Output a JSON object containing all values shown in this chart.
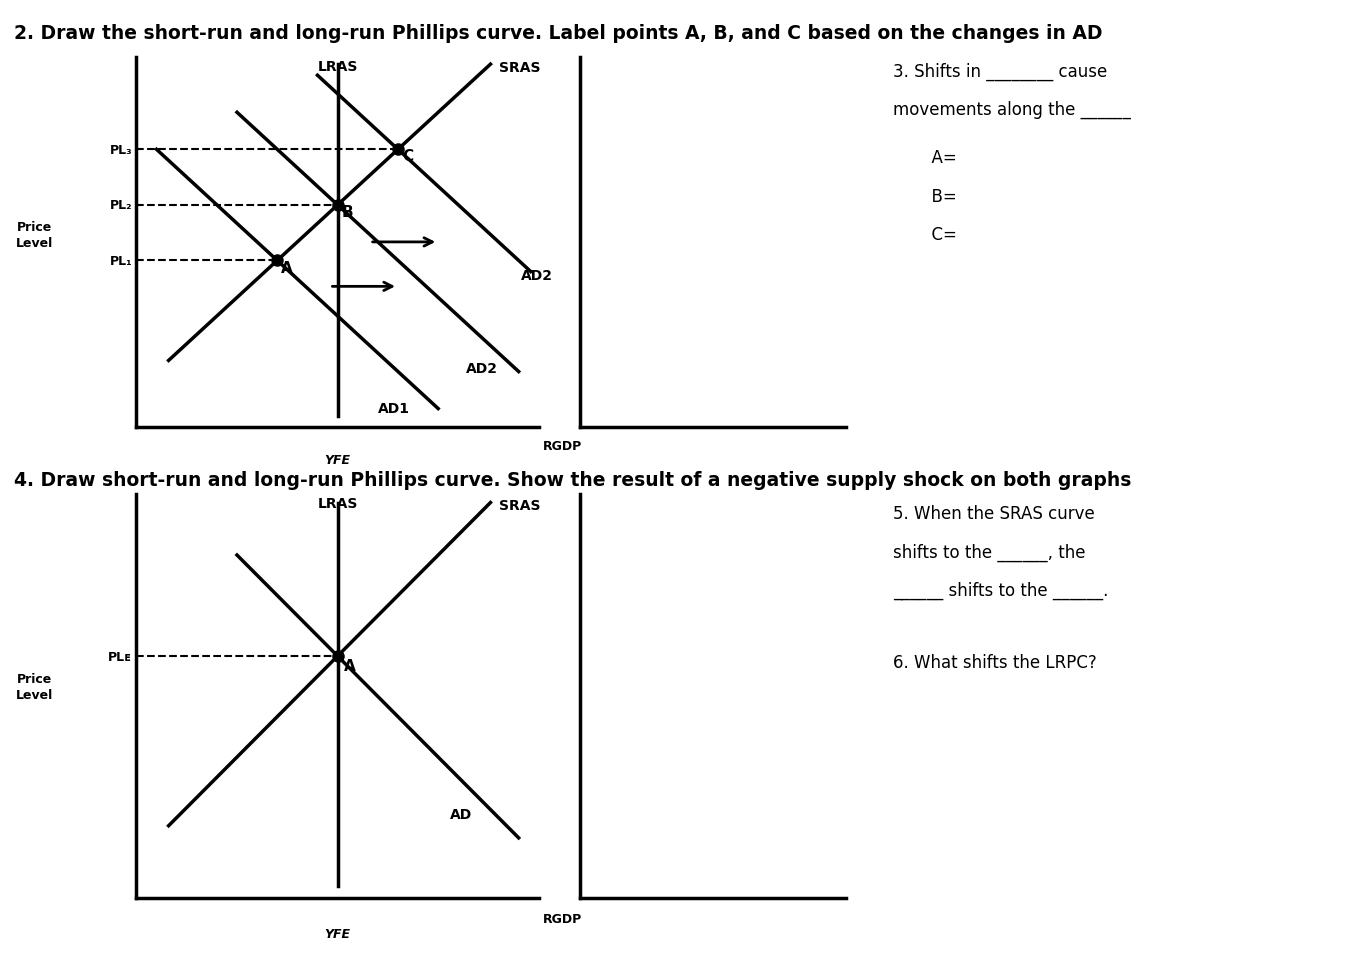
{
  "title1": "2. Draw the short-run and long-run Phillips curve. Label points A, B, and C based on the changes in AD",
  "title2": "4. Draw short-run and long-run Phillips curve. Show the result of a negative supply shock on both graphs",
  "text3_line1": "3. Shifts in ________ cause",
  "text3_line2": "movements along the ______",
  "text3_A": "  A=",
  "text3_B": "  B=",
  "text3_C": "  C=",
  "text5_line1": "5. When the SRAS curve",
  "text5_line2": "shifts to the ______, the",
  "text5_line3": "______ shifts to the ______.",
  "text6": "6. What shifts the LRPC?",
  "lras_label": "LRAS",
  "sras_label": "SRAS",
  "ad1_label": "AD1",
  "ad2_label_mid": "AD2",
  "ad2_label_top": "AD2",
  "yfe_label": "YFE",
  "pl1_label": "PL₁",
  "pl2_label": "PL₂",
  "pl3_label": "PL₃",
  "ple_label": "PLᴇ",
  "rgdp_label": "RGDP",
  "ad_label": "AD",
  "point_A": "A",
  "point_B": "B",
  "point_C": "C",
  "price_level": "Price\nLevel",
  "bg_color": "#ffffff",
  "line_color": "#000000"
}
